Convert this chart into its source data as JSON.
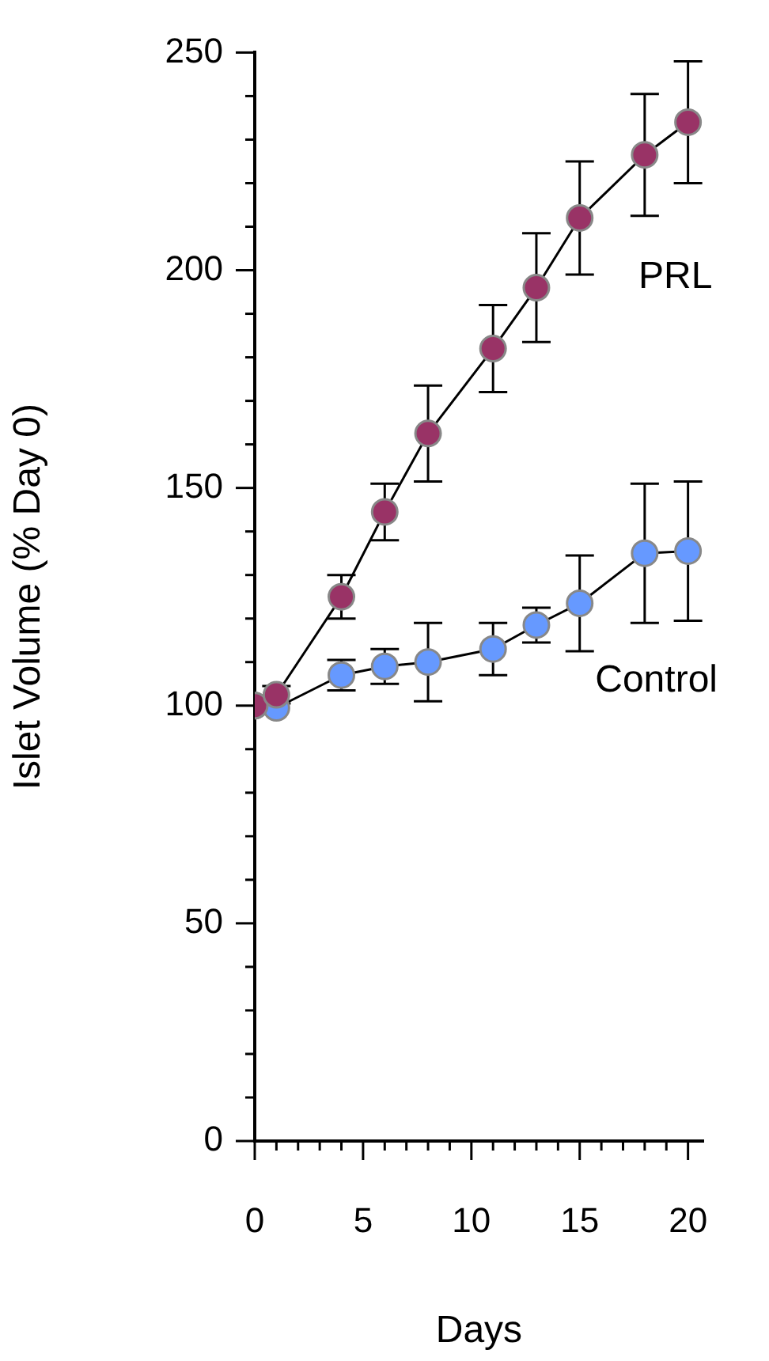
{
  "chart_data": {
    "type": "line",
    "xlabel": "Days",
    "ylabel": "Islet Volume (% Day 0)",
    "x": [
      0,
      1,
      4,
      6,
      8,
      11,
      13,
      15,
      18,
      20
    ],
    "series": [
      {
        "name": "PRL",
        "color": "#993366",
        "values": [
          100,
          102.5,
          125,
          144.5,
          162.5,
          182,
          196,
          212,
          226.5,
          234
        ],
        "errors": [
          null,
          2,
          5,
          6.5,
          11,
          10,
          12.5,
          13,
          14,
          14
        ]
      },
      {
        "name": "Control",
        "color": "#6699ff",
        "values": [
          100,
          99.5,
          107,
          109,
          110,
          113,
          118.5,
          123.5,
          135,
          135.5
        ],
        "errors": [
          null,
          null,
          3.5,
          4,
          9,
          6,
          4,
          11,
          16,
          16
        ]
      }
    ],
    "xlim": [
      0,
      20.7
    ],
    "ylim": [
      0,
      250
    ],
    "xticks": [
      0,
      {
        "value": 1,
        "label": null
      },
      {
        "value": 2,
        "label": null
      },
      {
        "value": 3,
        "label": null
      },
      {
        "value": 4,
        "label": null
      },
      5,
      {
        "value": 6,
        "label": null
      },
      {
        "value": 7,
        "label": null
      },
      {
        "value": 8,
        "label": null
      },
      {
        "value": 9,
        "label": null
      },
      10,
      {
        "value": 11,
        "label": null
      },
      {
        "value": 12,
        "label": null
      },
      {
        "value": 13,
        "label": null
      },
      {
        "value": 14,
        "label": null
      },
      15,
      {
        "value": 16,
        "label": null
      },
      {
        "value": 17,
        "label": null
      },
      {
        "value": 18,
        "label": null
      },
      {
        "value": 19,
        "label": null
      },
      20
    ],
    "yticks": [
      0,
      {
        "value": 10,
        "label": null
      },
      {
        "value": 20,
        "label": null
      },
      {
        "value": 30,
        "label": null
      },
      {
        "value": 40,
        "label": null
      },
      50,
      {
        "value": 60,
        "label": null
      },
      {
        "value": 70,
        "label": null
      },
      {
        "value": 80,
        "label": null
      },
      {
        "value": 90,
        "label": null
      },
      100,
      {
        "value": 110,
        "label": null
      },
      {
        "value": 120,
        "label": null
      },
      {
        "value": 130,
        "label": null
      },
      {
        "value": 140,
        "label": null
      },
      150,
      {
        "value": 160,
        "label": null
      },
      {
        "value": 170,
        "label": null
      },
      {
        "value": 180,
        "label": null
      },
      {
        "value": 190,
        "label": null
      },
      200,
      {
        "value": 210,
        "label": null
      },
      {
        "value": 220,
        "label": null
      },
      {
        "value": 230,
        "label": null
      },
      {
        "value": 240,
        "label": null
      },
      250
    ],
    "grid": false,
    "legend": false,
    "marker": "circle",
    "line_style": "solid"
  }
}
